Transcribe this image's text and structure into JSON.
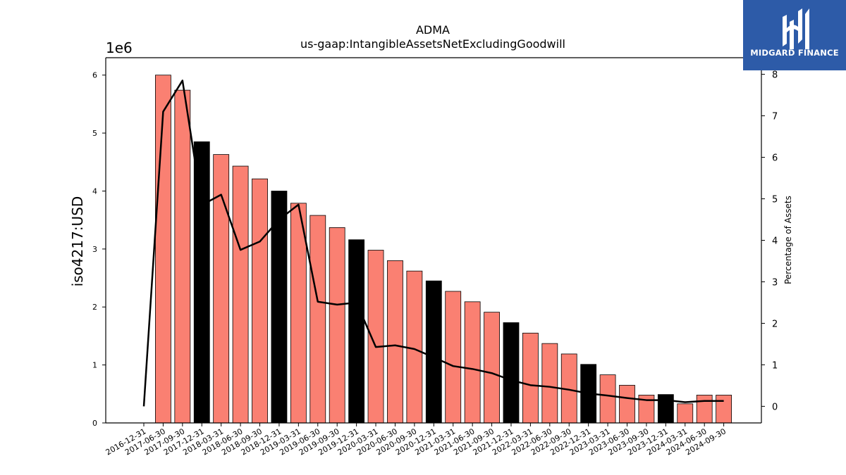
{
  "chart_data": {
    "type": "bar",
    "title": "ADMA",
    "subtitle": "us-gaap:IntangibleAssetsNetExcludingGoodwill",
    "ylabel": "iso4217:USD",
    "y_offset_label": "1e6",
    "y2label": "Percentage of Assets",
    "ylim": [
      0,
      6.3
    ],
    "y2lim": [
      -0.4,
      8.4
    ],
    "yticks": [
      "0",
      "1",
      "2",
      "3",
      "4",
      "5",
      "6"
    ],
    "y2ticks": [
      "0",
      "1",
      "2",
      "3",
      "4",
      "5",
      "6",
      "7",
      "8"
    ],
    "categories": [
      "2016-12-31",
      "2017-06-30",
      "2017-09-30",
      "2017-12-31",
      "2018-03-31",
      "2018-06-30",
      "2018-09-30",
      "2018-12-31",
      "2019-03-31",
      "2019-06-30",
      "2019-09-30",
      "2019-12-31",
      "2020-03-31",
      "2020-06-30",
      "2020-09-30",
      "2020-12-31",
      "2021-03-31",
      "2021-06-30",
      "2021-09-30",
      "2021-12-31",
      "2022-03-31",
      "2022-06-30",
      "2022-09-30",
      "2022-12-31",
      "2023-03-31",
      "2023-06-30",
      "2023-09-30",
      "2023-12-31",
      "2024-03-31",
      "2024-06-30",
      "2024-09-30"
    ],
    "series": [
      {
        "kind": "bar",
        "values": [
          null,
          6.0,
          5.74,
          4.85,
          4.63,
          4.43,
          4.21,
          4.0,
          3.79,
          3.58,
          3.37,
          3.16,
          2.98,
          2.8,
          2.62,
          2.45,
          2.27,
          2.09,
          1.91,
          1.73,
          1.55,
          1.37,
          1.19,
          1.01,
          0.83,
          0.65,
          0.48,
          0.49,
          0.33,
          0.48,
          0.48
        ],
        "fiscal_year_end": [
          false,
          false,
          false,
          true,
          false,
          false,
          false,
          true,
          false,
          false,
          false,
          true,
          false,
          false,
          false,
          true,
          false,
          false,
          false,
          true,
          false,
          false,
          false,
          true,
          false,
          false,
          false,
          true,
          false,
          false,
          false
        ],
        "color": "#fa8072",
        "highlight_color": "#000000"
      },
      {
        "kind": "line",
        "axis": "y2",
        "values": [
          0.0,
          7.1,
          7.85,
          4.85,
          5.1,
          3.77,
          3.97,
          4.5,
          4.86,
          2.52,
          2.45,
          2.5,
          1.43,
          1.47,
          1.38,
          1.18,
          0.97,
          0.9,
          0.8,
          0.63,
          0.51,
          0.47,
          0.4,
          0.31,
          0.26,
          0.2,
          0.15,
          0.15,
          0.1,
          0.13,
          0.13
        ],
        "color": "#000000"
      }
    ]
  },
  "logo": {
    "text": "MIDGARD FINANCE"
  }
}
